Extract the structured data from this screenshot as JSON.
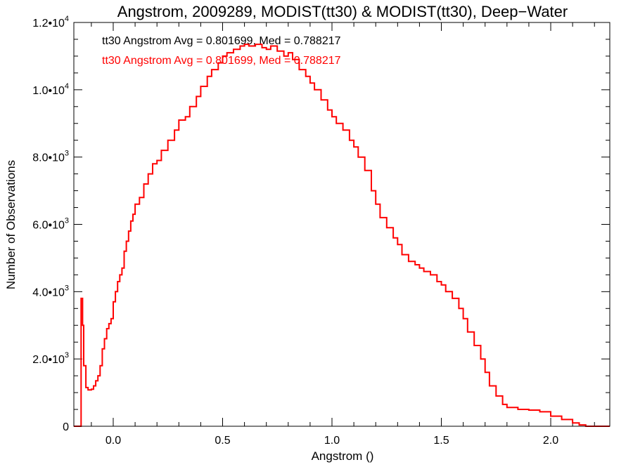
{
  "chart_data": {
    "type": "line",
    "title": "Angstrom, 2009289, MODIST(tt30) & MODIST(tt30), Deep−Water",
    "xlabel": "Angstrom ()",
    "ylabel": "Number of Observations",
    "xlim": [
      -0.18,
      2.27
    ],
    "ylim": [
      0,
      12000
    ],
    "x_ticks": [
      0.0,
      0.5,
      1.0,
      1.5,
      2.0
    ],
    "x_tick_labels": [
      "0.0",
      "0.5",
      "1.0",
      "1.5",
      "2.0"
    ],
    "y_ticks": [
      0,
      2000,
      4000,
      6000,
      8000,
      10000,
      12000
    ],
    "y_tick_labels": [
      {
        "mant": "0",
        "exp": ""
      },
      {
        "mant": "2.0•10",
        "exp": "3"
      },
      {
        "mant": "4.0•10",
        "exp": "3"
      },
      {
        "mant": "6.0•10",
        "exp": "3"
      },
      {
        "mant": "8.0•10",
        "exp": "3"
      },
      {
        "mant": "1.0•10",
        "exp": "4"
      },
      {
        "mant": "1.2•10",
        "exp": "4"
      }
    ],
    "grid": false,
    "legend_position": "top-left",
    "annotations": [
      {
        "text": "tt30 Angstrom Avg = 0.801699, Med = 0.788217",
        "color": "#000000"
      },
      {
        "text": "tt30 Angstrom Avg = 0.801699, Med = 0.788217",
        "color": "#ff0000"
      }
    ],
    "series": [
      {
        "color": "#ff0000",
        "style": "step",
        "x": [
          -0.18,
          -0.15,
          -0.147,
          -0.14,
          -0.135,
          -0.125,
          -0.115,
          -0.1,
          -0.09,
          -0.08,
          -0.07,
          -0.06,
          -0.05,
          -0.04,
          -0.03,
          -0.02,
          -0.01,
          0.0,
          0.01,
          0.02,
          0.03,
          0.04,
          0.05,
          0.06,
          0.07,
          0.08,
          0.09,
          0.1,
          0.12,
          0.14,
          0.16,
          0.18,
          0.2,
          0.22,
          0.25,
          0.28,
          0.3,
          0.33,
          0.35,
          0.38,
          0.4,
          0.43,
          0.45,
          0.48,
          0.5,
          0.52,
          0.55,
          0.58,
          0.6,
          0.62,
          0.65,
          0.68,
          0.7,
          0.72,
          0.75,
          0.78,
          0.8,
          0.82,
          0.85,
          0.88,
          0.9,
          0.92,
          0.95,
          0.98,
          1.0,
          1.02,
          1.05,
          1.08,
          1.1,
          1.12,
          1.15,
          1.18,
          1.2,
          1.22,
          1.25,
          1.28,
          1.3,
          1.32,
          1.35,
          1.38,
          1.4,
          1.42,
          1.45,
          1.48,
          1.5,
          1.52,
          1.55,
          1.58,
          1.6,
          1.62,
          1.65,
          1.68,
          1.7,
          1.72,
          1.75,
          1.78,
          1.8,
          1.85,
          1.9,
          1.95,
          2.0,
          2.05,
          2.1,
          2.13,
          2.16,
          2.27
        ],
        "y": [
          0,
          0,
          3800,
          3000,
          1800,
          1150,
          1080,
          1100,
          1200,
          1350,
          1500,
          1800,
          2300,
          2600,
          2900,
          3050,
          3200,
          3700,
          4000,
          4300,
          4500,
          4700,
          5200,
          5500,
          5800,
          6100,
          6300,
          6600,
          6800,
          7200,
          7500,
          7800,
          7900,
          8200,
          8500,
          8800,
          9100,
          9200,
          9500,
          9800,
          10100,
          10400,
          10600,
          10800,
          11000,
          11100,
          11200,
          11300,
          11350,
          11300,
          11350,
          11250,
          11200,
          11300,
          11150,
          11000,
          11100,
          10900,
          10600,
          10400,
          10200,
          10000,
          9700,
          9400,
          9200,
          9000,
          8800,
          8500,
          8300,
          8000,
          7600,
          7000,
          6600,
          6200,
          5900,
          5600,
          5400,
          5100,
          4900,
          4800,
          4700,
          4600,
          4500,
          4300,
          4200,
          4000,
          3800,
          3500,
          3200,
          2800,
          2400,
          2000,
          1600,
          1200,
          900,
          650,
          560,
          500,
          480,
          430,
          300,
          200,
          100,
          40,
          0,
          0
        ]
      }
    ]
  }
}
